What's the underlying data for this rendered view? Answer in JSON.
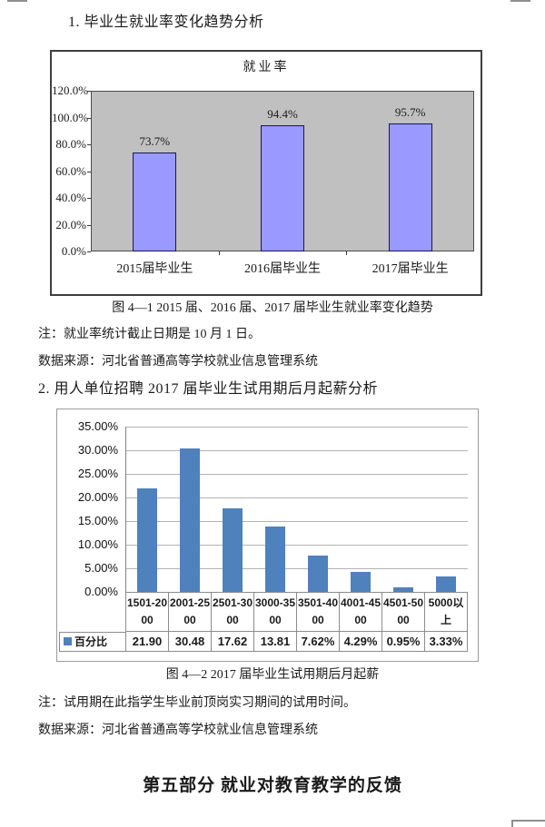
{
  "page": {
    "title1": "1. 毕业生就业率变化趋势分析",
    "caption1": "图 4—1 2015 届、2016 届、2017 届毕业生就业率变化趋势",
    "note1": "注：就业率统计截止日期是 10 月 1 日。",
    "source1": "数据来源：河北省普通高等学校就业信息管理系统",
    "title2": "2. 用人单位招聘 2017 届毕业生试用期后月起薪分析",
    "caption2": "图 4—2 2017 届毕业生试用期后月起薪",
    "note2": "注：试用期在此指学生毕业前顶岗实习期间的试用时间。",
    "source2": "数据来源：河北省普通高等学校就业信息管理系统",
    "footer_heading": "第五部分 就业对教育教学的反馈"
  },
  "chart_data": [
    {
      "type": "bar",
      "title": "就业率",
      "categories": [
        "2015届毕业生",
        "2016届毕业生",
        "2017届毕业生"
      ],
      "values": [
        73.7,
        94.4,
        95.7
      ],
      "data_labels": [
        "73.7%",
        "94.4%",
        "95.7%"
      ],
      "xlabel": "",
      "ylabel": "",
      "ylim": [
        0,
        120
      ],
      "yticks": [
        "120.0%",
        "100.0%",
        "80.0%",
        "60.0%",
        "40.0%",
        "20.0%",
        "0.0%"
      ],
      "grid": false,
      "legend_position": "none",
      "bar_color": "#9999FF",
      "bar_border_color": "#16165C",
      "plot_bg_color": "#C0C0C0"
    },
    {
      "type": "bar",
      "title": "",
      "categories": [
        "1501-2000",
        "2001-2500",
        "2501-3000",
        "3000-3500",
        "3501-4000",
        "4001-4500",
        "4501-5000",
        "5000以上"
      ],
      "series": [
        {
          "name": "百分比",
          "values": [
            21.9,
            30.48,
            17.62,
            13.81,
            7.62,
            4.29,
            0.95,
            3.33
          ]
        }
      ],
      "table_values": [
        "21.90",
        "30.48",
        "17.62",
        "13.81",
        "7.62%",
        "4.29%",
        "0.95%",
        "3.33%"
      ],
      "xlabel": "",
      "ylabel": "",
      "ylim": [
        0,
        35
      ],
      "yticks": [
        "35.00%",
        "30.00%",
        "25.00%",
        "20.00%",
        "15.00%",
        "10.00%",
        "5.00%",
        "0.00%"
      ],
      "grid": true,
      "legend_position": "table-left",
      "bar_color": "#4F81BD",
      "gridline_color": "#B3B3B3"
    }
  ]
}
